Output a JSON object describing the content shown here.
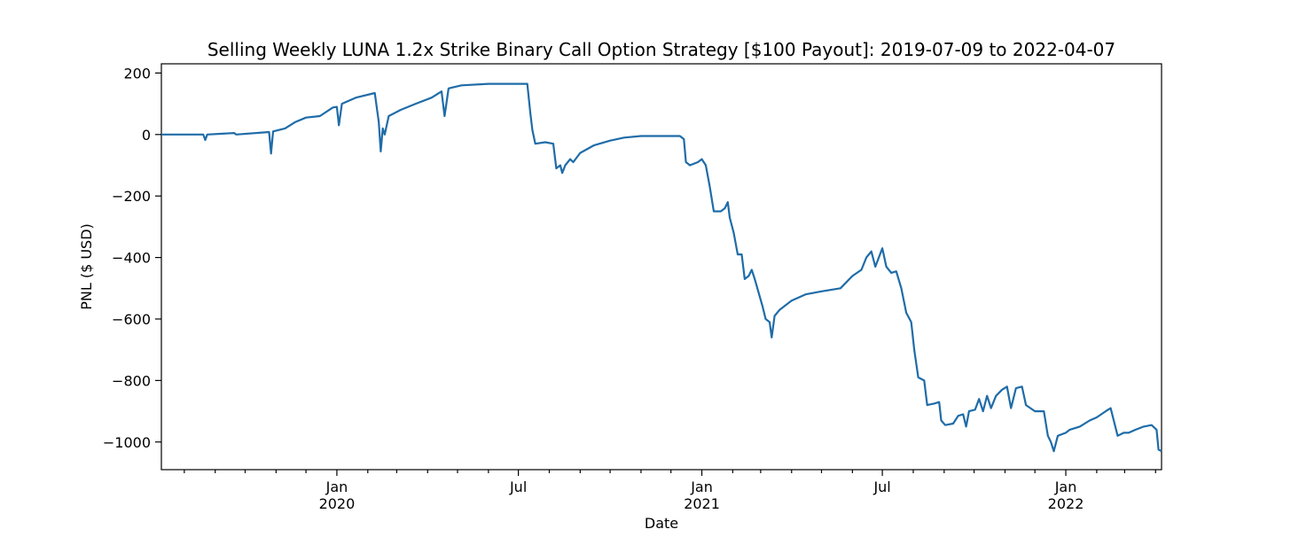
{
  "chart_data": {
    "type": "line",
    "title": "Selling Weekly LUNA 1.2x Strike Binary Call Option Strategy [$100 Payout]: 2019-07-09 to 2022-04-07",
    "xlabel": "Date",
    "ylabel": "PNL ($ USD)",
    "xlim": [
      "2019-07-09",
      "2022-04-07"
    ],
    "ylim": [
      -1090,
      230
    ],
    "grid": false,
    "y_ticks": [
      200,
      0,
      -200,
      -400,
      -600,
      -800,
      -1000
    ],
    "y_tick_labels": [
      "200",
      "0",
      "−200",
      "−400",
      "−600",
      "−800",
      "−1000"
    ],
    "x_major_ticks": [
      {
        "date": "2020-01-01",
        "label": "Jan",
        "year": "2020"
      },
      {
        "date": "2020-07-01",
        "label": "Jul",
        "year": ""
      },
      {
        "date": "2021-01-01",
        "label": "Jan",
        "year": "2021"
      },
      {
        "date": "2021-07-01",
        "label": "Jul",
        "year": ""
      },
      {
        "date": "2022-01-01",
        "label": "Jan",
        "year": "2022"
      }
    ],
    "x_minor_ticks": [
      "2019-08-01",
      "2019-09-01",
      "2019-10-01",
      "2019-11-01",
      "2019-12-01",
      "2020-02-01",
      "2020-03-01",
      "2020-04-01",
      "2020-05-01",
      "2020-06-01",
      "2020-08-01",
      "2020-09-01",
      "2020-10-01",
      "2020-11-01",
      "2020-12-01",
      "2021-02-01",
      "2021-03-01",
      "2021-04-01",
      "2021-05-01",
      "2021-06-01",
      "2021-08-01",
      "2021-09-01",
      "2021-10-01",
      "2021-11-01",
      "2021-12-01",
      "2022-02-01",
      "2022-03-01",
      "2022-04-01"
    ],
    "series": [
      {
        "color": "#1f6ca8",
        "points": [
          [
            "2019-07-09",
            0
          ],
          [
            "2019-08-20",
            0
          ],
          [
            "2019-08-22",
            -18
          ],
          [
            "2019-08-24",
            0
          ],
          [
            "2019-09-20",
            5
          ],
          [
            "2019-09-22",
            0
          ],
          [
            "2019-10-25",
            8
          ],
          [
            "2019-10-27",
            -62
          ],
          [
            "2019-10-29",
            10
          ],
          [
            "2019-11-10",
            20
          ],
          [
            "2019-11-20",
            40
          ],
          [
            "2019-12-01",
            55
          ],
          [
            "2019-12-15",
            60
          ],
          [
            "2019-12-28",
            88
          ],
          [
            "2020-01-01",
            90
          ],
          [
            "2020-01-03",
            30
          ],
          [
            "2020-01-06",
            100
          ],
          [
            "2020-01-20",
            120
          ],
          [
            "2020-02-08",
            135
          ],
          [
            "2020-02-12",
            40
          ],
          [
            "2020-02-14",
            -55
          ],
          [
            "2020-02-16",
            20
          ],
          [
            "2020-02-18",
            0
          ],
          [
            "2020-02-22",
            60
          ],
          [
            "2020-03-05",
            80
          ],
          [
            "2020-03-20",
            100
          ],
          [
            "2020-04-05",
            120
          ],
          [
            "2020-04-15",
            140
          ],
          [
            "2020-04-18",
            60
          ],
          [
            "2020-04-22",
            150
          ],
          [
            "2020-05-05",
            160
          ],
          [
            "2020-06-01",
            165
          ],
          [
            "2020-07-10",
            165
          ],
          [
            "2020-07-13",
            70
          ],
          [
            "2020-07-15",
            15
          ],
          [
            "2020-07-18",
            -30
          ],
          [
            "2020-07-28",
            -25
          ],
          [
            "2020-08-05",
            -30
          ],
          [
            "2020-08-08",
            -110
          ],
          [
            "2020-08-12",
            -100
          ],
          [
            "2020-08-14",
            -125
          ],
          [
            "2020-08-17",
            -100
          ],
          [
            "2020-08-22",
            -80
          ],
          [
            "2020-08-25",
            -90
          ],
          [
            "2020-09-01",
            -60
          ],
          [
            "2020-09-15",
            -35
          ],
          [
            "2020-10-01",
            -20
          ],
          [
            "2020-10-15",
            -10
          ],
          [
            "2020-11-01",
            -5
          ],
          [
            "2020-12-10",
            -5
          ],
          [
            "2020-12-14",
            -15
          ],
          [
            "2020-12-16",
            -90
          ],
          [
            "2020-12-20",
            -100
          ],
          [
            "2020-12-28",
            -90
          ],
          [
            "2021-01-01",
            -80
          ],
          [
            "2021-01-05",
            -100
          ],
          [
            "2021-01-09",
            -170
          ],
          [
            "2021-01-13",
            -250
          ],
          [
            "2021-01-20",
            -250
          ],
          [
            "2021-01-24",
            -240
          ],
          [
            "2021-01-27",
            -220
          ],
          [
            "2021-01-29",
            -270
          ],
          [
            "2021-02-02",
            -320
          ],
          [
            "2021-02-06",
            -390
          ],
          [
            "2021-02-10",
            -390
          ],
          [
            "2021-02-13",
            -470
          ],
          [
            "2021-02-17",
            -460
          ],
          [
            "2021-02-20",
            -440
          ],
          [
            "2021-02-23",
            -470
          ],
          [
            "2021-03-03",
            -560
          ],
          [
            "2021-03-06",
            -600
          ],
          [
            "2021-03-10",
            -610
          ],
          [
            "2021-03-12",
            -660
          ],
          [
            "2021-03-15",
            -590
          ],
          [
            "2021-03-20",
            -570
          ],
          [
            "2021-04-01",
            -540
          ],
          [
            "2021-04-15",
            -520
          ],
          [
            "2021-05-01",
            -510
          ],
          [
            "2021-05-20",
            -500
          ],
          [
            "2021-06-01",
            -460
          ],
          [
            "2021-06-10",
            -440
          ],
          [
            "2021-06-15",
            -400
          ],
          [
            "2021-06-20",
            -380
          ],
          [
            "2021-06-24",
            -430
          ],
          [
            "2021-07-01",
            -370
          ],
          [
            "2021-07-05",
            -430
          ],
          [
            "2021-07-10",
            -450
          ],
          [
            "2021-07-15",
            -445
          ],
          [
            "2021-07-20",
            -500
          ],
          [
            "2021-07-25",
            -580
          ],
          [
            "2021-07-30",
            -610
          ],
          [
            "2021-08-02",
            -700
          ],
          [
            "2021-08-06",
            -790
          ],
          [
            "2021-08-12",
            -800
          ],
          [
            "2021-08-15",
            -880
          ],
          [
            "2021-08-22",
            -875
          ],
          [
            "2021-08-27",
            -870
          ],
          [
            "2021-08-29",
            -930
          ],
          [
            "2021-09-02",
            -945
          ],
          [
            "2021-09-10",
            -940
          ],
          [
            "2021-09-15",
            -915
          ],
          [
            "2021-09-20",
            -910
          ],
          [
            "2021-09-23",
            -950
          ],
          [
            "2021-09-26",
            -900
          ],
          [
            "2021-10-02",
            -895
          ],
          [
            "2021-10-06",
            -860
          ],
          [
            "2021-10-10",
            -900
          ],
          [
            "2021-10-14",
            -850
          ],
          [
            "2021-10-18",
            -890
          ],
          [
            "2021-10-23",
            -850
          ],
          [
            "2021-10-29",
            -830
          ],
          [
            "2021-11-03",
            -820
          ],
          [
            "2021-11-07",
            -890
          ],
          [
            "2021-11-12",
            -825
          ],
          [
            "2021-11-18",
            -820
          ],
          [
            "2021-11-22",
            -880
          ],
          [
            "2021-12-01",
            -900
          ],
          [
            "2021-12-10",
            -900
          ],
          [
            "2021-12-14",
            -980
          ],
          [
            "2021-12-17",
            -1000
          ],
          [
            "2021-12-20",
            -1030
          ],
          [
            "2021-12-24",
            -980
          ],
          [
            "2022-01-01",
            -970
          ],
          [
            "2022-01-05",
            -960
          ],
          [
            "2022-01-15",
            -950
          ],
          [
            "2022-01-25",
            -930
          ],
          [
            "2022-02-01",
            -920
          ],
          [
            "2022-02-10",
            -900
          ],
          [
            "2022-02-15",
            -890
          ],
          [
            "2022-02-22",
            -980
          ],
          [
            "2022-02-28",
            -970
          ],
          [
            "2022-03-05",
            -970
          ],
          [
            "2022-03-12",
            -960
          ],
          [
            "2022-03-20",
            -950
          ],
          [
            "2022-03-28",
            -945
          ],
          [
            "2022-04-02",
            -960
          ],
          [
            "2022-04-04",
            -1025
          ],
          [
            "2022-04-07",
            -1030
          ]
        ]
      }
    ]
  }
}
